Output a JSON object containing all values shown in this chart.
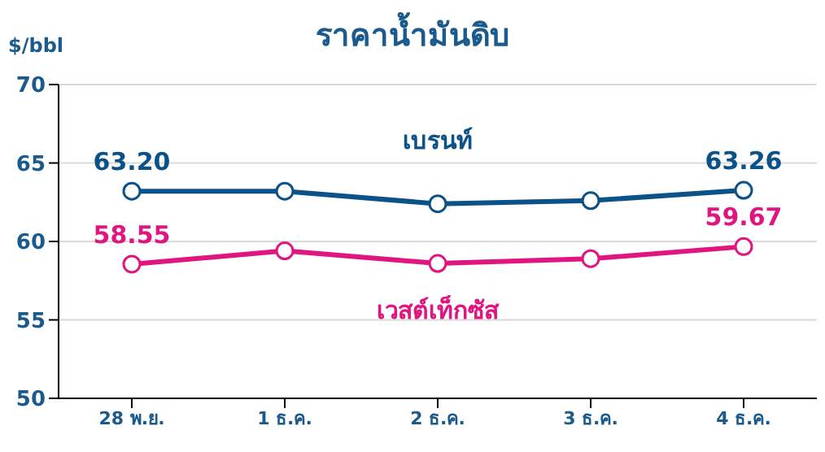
{
  "chart_data": {
    "type": "line",
    "title": "ราคาน้ำมันดิบ",
    "ylabel": "$/bbl",
    "categories": [
      "28 พ.ย.",
      "1 ธ.ค.",
      "2 ธ.ค.",
      "3 ธ.ค.",
      "4 ธ.ค."
    ],
    "series": [
      {
        "name": "เบรนท์",
        "color": "#0b5289",
        "values": [
          63.2,
          63.2,
          62.4,
          62.6,
          63.26
        ],
        "value_labels": [
          "63.20",
          null,
          null,
          null,
          "63.26"
        ]
      },
      {
        "name": "เวสต์เท็กซัส",
        "color": "#e0157f",
        "values": [
          58.55,
          59.4,
          58.6,
          58.9,
          59.67
        ],
        "value_labels": [
          "58.55",
          null,
          null,
          null,
          "59.67"
        ]
      }
    ],
    "ylim": [
      50,
      70
    ],
    "yticks": [
      50,
      55,
      60,
      65,
      70
    ],
    "grid": "y",
    "marker": "circle",
    "line_style": "solid"
  }
}
